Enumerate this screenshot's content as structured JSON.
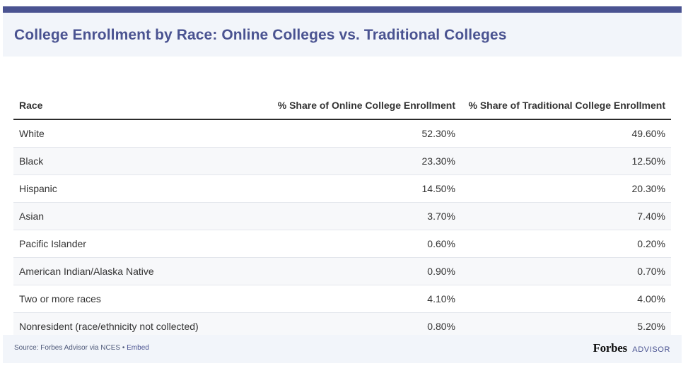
{
  "title": "College Enrollment by Race: Online Colleges vs. Traditional Colleges",
  "table": {
    "headers": [
      "Race",
      "% Share of Online College Enrollment",
      "% Share of Traditional College Enrollment"
    ],
    "rows": [
      [
        "White",
        "52.30%",
        "49.60%"
      ],
      [
        "Black",
        "23.30%",
        "12.50%"
      ],
      [
        "Hispanic",
        "14.50%",
        "20.30%"
      ],
      [
        "Asian",
        "3.70%",
        "7.40%"
      ],
      [
        "Pacific Islander",
        "0.60%",
        "0.20%"
      ],
      [
        "American Indian/Alaska Native",
        "0.90%",
        "0.70%"
      ],
      [
        "Two or more races",
        "4.10%",
        "4.00%"
      ],
      [
        "Nonresident (race/ethnicity not collected)",
        "0.80%",
        "5.20%"
      ]
    ]
  },
  "footer": {
    "source": "Source: Forbes Advisor via NCES",
    "separator": "•",
    "embed_label": "Embed",
    "brand_name": "Forbes",
    "brand_suffix": "ADVISOR"
  },
  "colors": {
    "accent": "#4a5391",
    "header_bg": "#f2f5fa",
    "text": "#333333"
  }
}
